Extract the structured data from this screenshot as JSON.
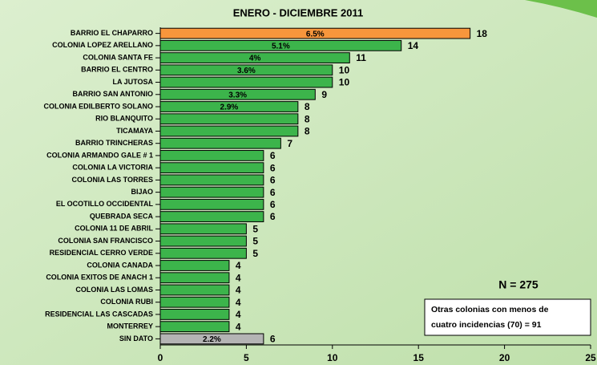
{
  "chart_data": {
    "type": "barh",
    "title": "ENERO - DICIEMBRE 2011",
    "categories": [
      "BARRIO EL CHAPARRO",
      "COLONIA LOPEZ ARELLANO",
      "COLONIA SANTA FE",
      "BARRIO EL CENTRO",
      "LA JUTOSA",
      "BARRIO SAN ANTONIO",
      "COLONIA EDILBERTO SOLANO",
      "RIO BLANQUITO",
      "TICAMAYA",
      "BARRIO TRINCHERAS",
      "COLONIA ARMANDO GALE # 1",
      "COLONIA LA VICTORIA",
      "COLONIA LAS TORRES",
      "BIJAO",
      "EL OCOTILLO OCCIDENTAL",
      "QUEBRADA SECA",
      "COLONIA 11 DE ABRIL",
      "COLONIA SAN FRANCISCO",
      "RESIDENCIAL CERRO VERDE",
      "COLONIA CANADA",
      "COLONIA EXITOS DE ANACH 1",
      "COLONIA LAS LOMAS",
      "COLONIA RUBI",
      "RESIDENCIAL LAS CASCADAS",
      "MONTERREY",
      "SIN DATO"
    ],
    "values": [
      18,
      14,
      11,
      10,
      10,
      9,
      8,
      8,
      8,
      7,
      6,
      6,
      6,
      6,
      6,
      6,
      5,
      5,
      5,
      4,
      4,
      4,
      4,
      4,
      4,
      6
    ],
    "percent_labels": [
      "6.5%",
      "5.1%",
      "4%",
      "3.6%",
      null,
      "3.3%",
      "2.9%",
      null,
      null,
      null,
      null,
      null,
      null,
      null,
      null,
      null,
      null,
      null,
      null,
      null,
      null,
      null,
      null,
      null,
      null,
      "2.2%"
    ],
    "colors": [
      "#f7963c",
      "#3cb44b",
      "#3cb44b",
      "#3cb44b",
      "#3cb44b",
      "#3cb44b",
      "#3cb44b",
      "#3cb44b",
      "#3cb44b",
      "#3cb44b",
      "#3cb44b",
      "#3cb44b",
      "#3cb44b",
      "#3cb44b",
      "#3cb44b",
      "#3cb44b",
      "#3cb44b",
      "#3cb44b",
      "#3cb44b",
      "#3cb44b",
      "#3cb44b",
      "#3cb44b",
      "#3cb44b",
      "#3cb44b",
      "#3cb44b",
      "#b4b4b4"
    ],
    "xlim": [
      0,
      25
    ],
    "xticks": [
      0,
      5,
      10,
      15,
      20,
      25
    ],
    "total_label": "N = 275",
    "note": [
      "Otras colonias con menos de",
      "cuatro incidencias (70) = 91"
    ]
  }
}
